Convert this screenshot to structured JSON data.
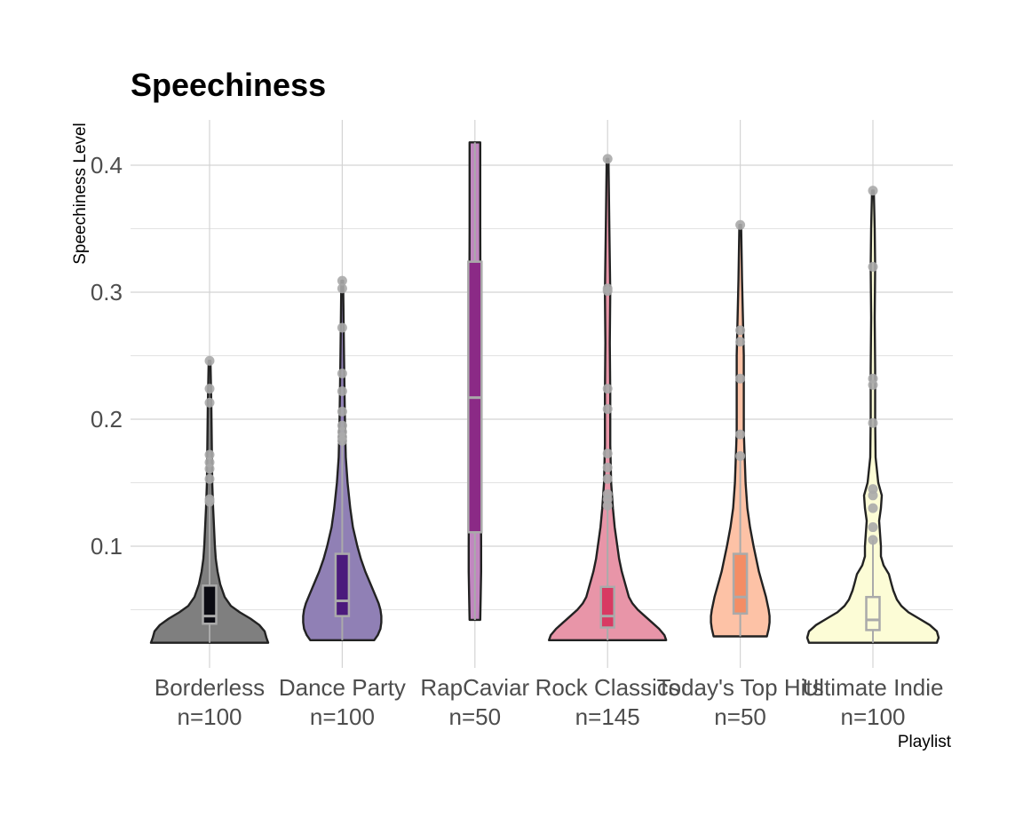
{
  "chart_data": {
    "type": "violin",
    "title": "Speechiness",
    "xlabel": "Playlist",
    "ylabel": "Speechiness Level",
    "ylim": [
      0.02,
      0.435
    ],
    "yticks": [
      0.1,
      0.2,
      0.3,
      0.4
    ],
    "yticks_minor": [
      0.05,
      0.15,
      0.25,
      0.35
    ],
    "tick_labels": [
      "0.1",
      "0.2",
      "0.3",
      "0.4"
    ],
    "grid": true,
    "legend": "none",
    "colors": {
      "outline": "#222222",
      "box_border": "#aaaaaa",
      "outlier": "#aaaaaa",
      "grid": "#d4d4d4"
    },
    "series": [
      {
        "category": "Borderless",
        "label": "n=100",
        "violin_color": "#7f7f7f",
        "box_color": "#0b0b12",
        "min": 0.024,
        "max": 0.246,
        "q1": 0.039,
        "median": 0.045,
        "q3": 0.069,
        "density": [
          [
            0.024,
            66
          ],
          [
            0.028,
            64
          ],
          [
            0.033,
            62
          ],
          [
            0.038,
            56
          ],
          [
            0.043,
            46
          ],
          [
            0.048,
            34
          ],
          [
            0.053,
            24
          ],
          [
            0.06,
            17
          ],
          [
            0.07,
            12
          ],
          [
            0.08,
            9
          ],
          [
            0.09,
            7
          ],
          [
            0.1,
            6
          ],
          [
            0.115,
            5
          ],
          [
            0.13,
            4
          ],
          [
            0.15,
            3
          ],
          [
            0.18,
            2.5
          ],
          [
            0.21,
            2
          ],
          [
            0.246,
            1
          ]
        ],
        "outliers": [
          0.246,
          0.224,
          0.213,
          0.172,
          0.166,
          0.161,
          0.153,
          0.137,
          0.135
        ]
      },
      {
        "category": "Dance Party",
        "label": "n=100",
        "violin_color": "#9080b5",
        "box_color": "#4b1a7c",
        "min": 0.026,
        "max": 0.309,
        "q1": 0.045,
        "median": 0.057,
        "q3": 0.094,
        "density": [
          [
            0.026,
            36
          ],
          [
            0.03,
            40
          ],
          [
            0.035,
            43
          ],
          [
            0.04,
            44
          ],
          [
            0.045,
            44
          ],
          [
            0.05,
            43
          ],
          [
            0.055,
            41
          ],
          [
            0.06,
            38
          ],
          [
            0.07,
            32
          ],
          [
            0.08,
            26
          ],
          [
            0.09,
            21
          ],
          [
            0.1,
            17
          ],
          [
            0.115,
            12
          ],
          [
            0.13,
            9
          ],
          [
            0.15,
            6
          ],
          [
            0.17,
            4
          ],
          [
            0.2,
            3
          ],
          [
            0.25,
            2
          ],
          [
            0.309,
            1
          ]
        ],
        "outliers": [
          0.309,
          0.303,
          0.272,
          0.236,
          0.222,
          0.206,
          0.195,
          0.19,
          0.186,
          0.183
        ]
      },
      {
        "category": "RapCaviar",
        "label": "n=50",
        "violin_color": "#c187c0",
        "box_color": "#8b2a86",
        "min": 0.042,
        "max": 0.418,
        "q1": 0.111,
        "median": 0.217,
        "q3": 0.324,
        "density": [
          [
            0.042,
            6
          ],
          [
            0.06,
            6.5
          ],
          [
            0.08,
            7
          ],
          [
            0.1,
            7
          ],
          [
            0.15,
            6.8
          ],
          [
            0.2,
            6.5
          ],
          [
            0.25,
            6.3
          ],
          [
            0.3,
            6.2
          ],
          [
            0.35,
            6
          ],
          [
            0.4,
            6
          ],
          [
            0.418,
            6
          ]
        ],
        "outliers": []
      },
      {
        "category": "Rock Classics",
        "label": "n=145",
        "violin_color": "#e895a8",
        "box_color": "#d83a62",
        "min": 0.026,
        "max": 0.405,
        "q1": 0.036,
        "median": 0.045,
        "q3": 0.068,
        "density": [
          [
            0.026,
            66
          ],
          [
            0.03,
            64
          ],
          [
            0.035,
            58
          ],
          [
            0.04,
            50
          ],
          [
            0.045,
            42
          ],
          [
            0.05,
            34
          ],
          [
            0.055,
            28
          ],
          [
            0.06,
            24
          ],
          [
            0.07,
            20
          ],
          [
            0.08,
            16
          ],
          [
            0.09,
            13
          ],
          [
            0.1,
            11
          ],
          [
            0.115,
            8
          ],
          [
            0.13,
            6
          ],
          [
            0.15,
            4
          ],
          [
            0.18,
            3
          ],
          [
            0.22,
            3
          ],
          [
            0.26,
            2.5
          ],
          [
            0.3,
            3
          ],
          [
            0.35,
            2
          ],
          [
            0.405,
            1
          ]
        ],
        "outliers": [
          0.405,
          0.303,
          0.301,
          0.224,
          0.208,
          0.173,
          0.162,
          0.153,
          0.141,
          0.137,
          0.132
        ]
      },
      {
        "category": "Today's Top Hits",
        "label": "n=50",
        "violin_color": "#fdc2a6",
        "box_color": "#f48d64",
        "min": 0.029,
        "max": 0.353,
        "q1": 0.047,
        "median": 0.06,
        "q3": 0.094,
        "density": [
          [
            0.029,
            30
          ],
          [
            0.035,
            32
          ],
          [
            0.04,
            33
          ],
          [
            0.045,
            33
          ],
          [
            0.05,
            32
          ],
          [
            0.06,
            29
          ],
          [
            0.07,
            25
          ],
          [
            0.08,
            21
          ],
          [
            0.09,
            18
          ],
          [
            0.1,
            15
          ],
          [
            0.115,
            11
          ],
          [
            0.13,
            8
          ],
          [
            0.15,
            6
          ],
          [
            0.17,
            5
          ],
          [
            0.19,
            4
          ],
          [
            0.22,
            4
          ],
          [
            0.25,
            4
          ],
          [
            0.28,
            3
          ],
          [
            0.31,
            2
          ],
          [
            0.353,
            1
          ]
        ],
        "outliers": [
          0.353,
          0.27,
          0.261,
          0.232,
          0.188,
          0.171
        ]
      },
      {
        "category": "Ultimate Indie",
        "label": "n=100",
        "violin_color": "#fcfcd6",
        "box_color": "#fcfcd6",
        "min": 0.024,
        "max": 0.38,
        "q1": 0.034,
        "median": 0.042,
        "q3": 0.06,
        "density": [
          [
            0.024,
            72
          ],
          [
            0.028,
            74
          ],
          [
            0.033,
            72
          ],
          [
            0.038,
            64
          ],
          [
            0.043,
            52
          ],
          [
            0.048,
            40
          ],
          [
            0.053,
            32
          ],
          [
            0.058,
            27
          ],
          [
            0.065,
            23
          ],
          [
            0.07,
            21
          ],
          [
            0.078,
            18
          ],
          [
            0.085,
            12
          ],
          [
            0.092,
            9
          ],
          [
            0.1,
            9
          ],
          [
            0.11,
            8
          ],
          [
            0.12,
            7
          ],
          [
            0.13,
            9
          ],
          [
            0.14,
            10
          ],
          [
            0.15,
            6
          ],
          [
            0.17,
            3
          ],
          [
            0.2,
            2.5
          ],
          [
            0.24,
            2.5
          ],
          [
            0.28,
            2
          ],
          [
            0.32,
            2.5
          ],
          [
            0.35,
            2
          ],
          [
            0.38,
            1
          ]
        ],
        "outliers": [
          0.38,
          0.32,
          0.232,
          0.227,
          0.197,
          0.145,
          0.14,
          0.13,
          0.115,
          0.105
        ]
      }
    ]
  }
}
